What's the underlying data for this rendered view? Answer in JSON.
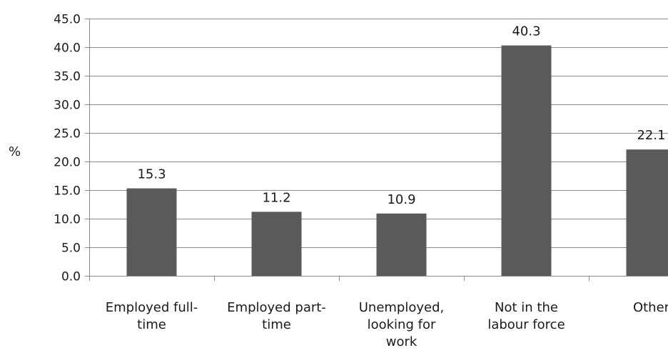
{
  "chart_data": {
    "type": "bar",
    "categories": [
      "Employed full-time",
      "Employed part-time",
      "Unemployed, looking for work",
      "Not in the labour force",
      "Other"
    ],
    "category_label_lines": [
      [
        "Employed full-",
        "time"
      ],
      [
        "Employed part-",
        "time"
      ],
      [
        "Unemployed,",
        "looking for",
        "work"
      ],
      [
        "Not in the",
        "labour force"
      ],
      [
        "Other"
      ]
    ],
    "values": [
      15.3,
      11.2,
      10.9,
      40.3,
      22.1
    ],
    "data_labels": [
      "15.3",
      "11.2",
      "10.9",
      "40.3",
      "22.1"
    ],
    "title": "",
    "xlabel": "",
    "ylabel": "%",
    "ylim": [
      0,
      45
    ],
    "y_ticks": [
      "0.0",
      "5.0",
      "10.0",
      "15.0",
      "20.0",
      "25.0",
      "30.0",
      "35.0",
      "40.0",
      "45.0"
    ],
    "grid": true,
    "legend": "none",
    "bar_color": "#5a5a5a",
    "grid_color": "#8a8a8a",
    "axis_color": "#8a8a8a"
  }
}
